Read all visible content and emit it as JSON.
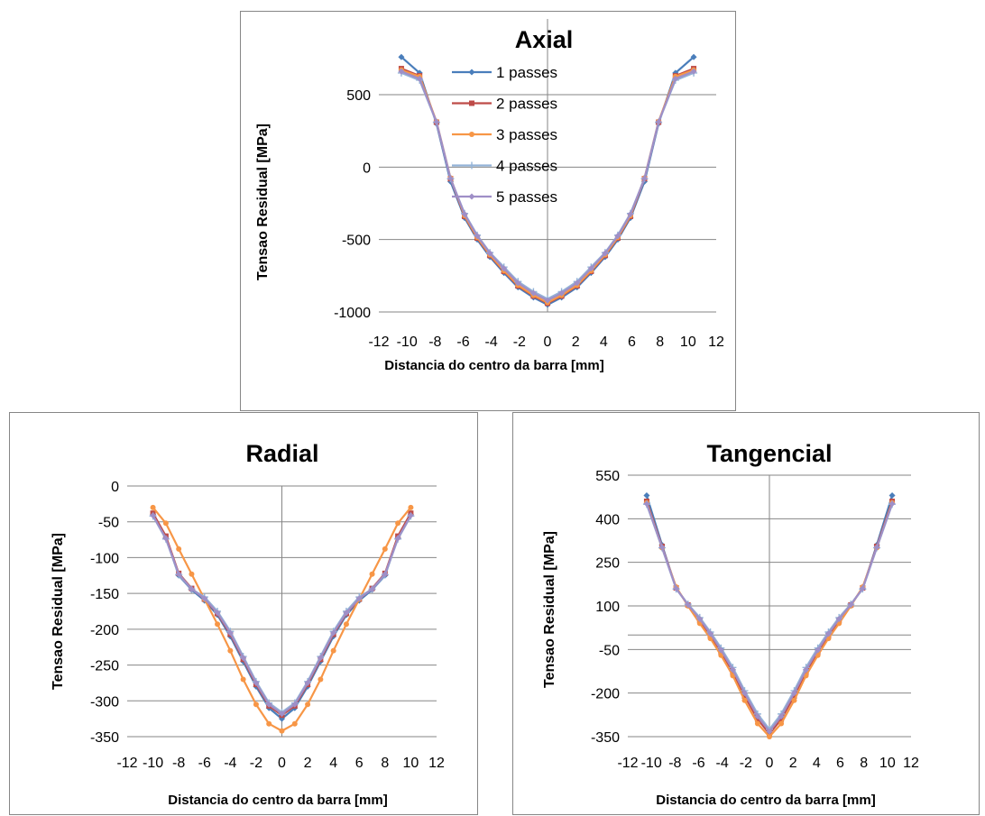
{
  "chart_data": [
    {
      "type": "line",
      "title": "Axial",
      "xlabel": "Distancia do centro da barra [mm]",
      "ylabel": "Tensao Residual [MPa]",
      "xlim": [
        -12,
        12
      ],
      "ylim": [
        -1000,
        700
      ],
      "xticks": [
        "-12",
        "-10",
        "-8",
        "-6",
        "-4",
        "-2",
        "0",
        "2",
        "4",
        "6",
        "8",
        "10",
        "12"
      ],
      "yticks": [
        "500",
        "0",
        "-500",
        "-1000"
      ],
      "legend_position": "top-center",
      "grid": true,
      "series": [
        {
          "name": "1 passes",
          "color": "#4a7ebb",
          "marker": "diamond",
          "x": [
            -10.4,
            -9.1,
            -7.9,
            -6.9,
            -5.9,
            -5.0,
            -4.1,
            -3.1,
            -2.1,
            -1.0,
            0,
            1.0,
            2.1,
            3.1,
            4.1,
            5.0,
            5.9,
            6.9,
            7.9,
            9.1,
            10.4
          ],
          "y": [
            760,
            650,
            300,
            -100,
            -350,
            -500,
            -620,
            -730,
            -830,
            -900,
            -950,
            -900,
            -830,
            -730,
            -620,
            -500,
            -350,
            -100,
            300,
            650,
            760
          ]
        },
        {
          "name": "2 passes",
          "color": "#be4b48",
          "marker": "square",
          "x": [
            -10.4,
            -9.1,
            -7.9,
            -6.9,
            -5.9,
            -5.0,
            -4.1,
            -3.1,
            -2.1,
            -1.0,
            0,
            1.0,
            2.1,
            3.1,
            4.1,
            5.0,
            5.9,
            6.9,
            7.9,
            9.1,
            10.4
          ],
          "y": [
            680,
            630,
            310,
            -80,
            -340,
            -490,
            -610,
            -720,
            -820,
            -890,
            -940,
            -890,
            -820,
            -720,
            -610,
            -490,
            -340,
            -80,
            310,
            630,
            680
          ]
        },
        {
          "name": "3 passes",
          "color": "#f79646",
          "marker": "circle",
          "x": [
            -10.4,
            -9.1,
            -7.9,
            -6.9,
            -5.9,
            -5.0,
            -4.1,
            -3.1,
            -2.1,
            -1.0,
            0,
            1.0,
            2.1,
            3.1,
            4.1,
            5.0,
            5.9,
            6.9,
            7.9,
            9.1,
            10.4
          ],
          "y": [
            670,
            625,
            315,
            -75,
            -335,
            -485,
            -605,
            -715,
            -815,
            -885,
            -935,
            -885,
            -815,
            -715,
            -605,
            -485,
            -335,
            -75,
            315,
            625,
            670
          ]
        },
        {
          "name": "4 passes",
          "color": "#93b3d7",
          "marker": "plus",
          "x": [
            -10.4,
            -9.1,
            -7.9,
            -6.9,
            -5.9,
            -5.0,
            -4.1,
            -3.1,
            -2.1,
            -1.0,
            0,
            1.0,
            2.1,
            3.1,
            4.1,
            5.0,
            5.9,
            6.9,
            7.9,
            9.1,
            10.4
          ],
          "y": [
            650,
            600,
            310,
            -80,
            -320,
            -470,
            -590,
            -690,
            -790,
            -860,
            -910,
            -860,
            -790,
            -690,
            -590,
            -470,
            -320,
            -80,
            310,
            600,
            650
          ]
        },
        {
          "name": "5 passes",
          "color": "#9f8fc7",
          "marker": "diamond",
          "x": [
            -10.4,
            -9.1,
            -7.9,
            -6.9,
            -5.9,
            -5.0,
            -4.1,
            -3.1,
            -2.1,
            -1.0,
            0,
            1.0,
            2.1,
            3.1,
            4.1,
            5.0,
            5.9,
            6.9,
            7.9,
            9.1,
            10.4
          ],
          "y": [
            660,
            610,
            312,
            -78,
            -325,
            -475,
            -595,
            -700,
            -800,
            -870,
            -920,
            -870,
            -800,
            -700,
            -595,
            -475,
            -325,
            -78,
            312,
            610,
            660
          ]
        }
      ]
    },
    {
      "type": "line",
      "title": "Radial",
      "xlabel": "Distancia do centro da barra [mm]",
      "ylabel": "Tensao Residual [MPa]",
      "xlim": [
        -12,
        12
      ],
      "ylim": [
        -350,
        0
      ],
      "xticks": [
        "-12",
        "-10",
        "-8",
        "-6",
        "-4",
        "-2",
        "0",
        "2",
        "4",
        "6",
        "8",
        "10",
        "12"
      ],
      "yticks": [
        "0",
        "-50",
        "-100",
        "-150",
        "-200",
        "-250",
        "-300",
        "-350"
      ],
      "grid": true,
      "series": [
        {
          "name": "1 passes",
          "color": "#4a7ebb",
          "marker": "diamond",
          "x": [
            -10,
            -9,
            -8,
            -7,
            -6,
            -5,
            -4,
            -3,
            -2,
            -1,
            0,
            1,
            2,
            3,
            4,
            5,
            6,
            7,
            8,
            9,
            10
          ],
          "y": [
            -40,
            -72,
            -125,
            -145,
            -160,
            -180,
            -210,
            -245,
            -280,
            -310,
            -325,
            -310,
            -280,
            -245,
            -210,
            -180,
            -160,
            -145,
            -125,
            -72,
            -40
          ]
        },
        {
          "name": "2 passes",
          "color": "#be4b48",
          "marker": "square",
          "x": [
            -10,
            -9,
            -8,
            -7,
            -6,
            -5,
            -4,
            -3,
            -2,
            -1,
            0,
            1,
            2,
            3,
            4,
            5,
            6,
            7,
            8,
            9,
            10
          ],
          "y": [
            -38,
            -70,
            -122,
            -143,
            -158,
            -178,
            -207,
            -242,
            -277,
            -307,
            -320,
            -307,
            -277,
            -242,
            -207,
            -178,
            -158,
            -143,
            -122,
            -70,
            -38
          ]
        },
        {
          "name": "3 passes",
          "color": "#f79646",
          "marker": "circle",
          "x": [
            -10,
            -9,
            -8,
            -7,
            -6,
            -5,
            -4,
            -3,
            -2,
            -1,
            0,
            1,
            2,
            3,
            4,
            5,
            6,
            7,
            8,
            9,
            10
          ],
          "y": [
            -30,
            -52,
            -88,
            -123,
            -158,
            -193,
            -230,
            -270,
            -305,
            -332,
            -342,
            -332,
            -305,
            -270,
            -230,
            -193,
            -158,
            -123,
            -88,
            -52,
            -30
          ]
        },
        {
          "name": "4 passes",
          "color": "#93b3d7",
          "marker": "plus",
          "x": [
            -10,
            -9,
            -8,
            -7,
            -6,
            -5,
            -4,
            -3,
            -2,
            -1,
            0,
            1,
            2,
            3,
            4,
            5,
            6,
            7,
            8,
            9,
            10
          ],
          "y": [
            -42,
            -74,
            -124,
            -144,
            -155,
            -175,
            -203,
            -238,
            -273,
            -303,
            -316,
            -303,
            -273,
            -238,
            -203,
            -175,
            -155,
            -144,
            -124,
            -74,
            -42
          ]
        },
        {
          "name": "5 passes",
          "color": "#9f8fc7",
          "marker": "diamond",
          "x": [
            -10,
            -9,
            -8,
            -7,
            -6,
            -5,
            -4,
            -3,
            -2,
            -1,
            0,
            1,
            2,
            3,
            4,
            5,
            6,
            7,
            8,
            9,
            10
          ],
          "y": [
            -41,
            -73,
            -123,
            -144,
            -157,
            -177,
            -205,
            -240,
            -275,
            -305,
            -318,
            -305,
            -275,
            -240,
            -205,
            -177,
            -157,
            -144,
            -123,
            -73,
            -41
          ]
        }
      ]
    },
    {
      "type": "line",
      "title": "Tangencial",
      "xlabel": "Distancia do centro da barra [mm]",
      "ylabel": "Tensao Residual [MPa]",
      "xlim": [
        -12,
        12
      ],
      "ylim": [
        -350,
        550
      ],
      "xticks": [
        "-12",
        "-10",
        "-8",
        "-6",
        "-4",
        "-2",
        "0",
        "2",
        "4",
        "6",
        "8",
        "10",
        "12"
      ],
      "yticks": [
        "550",
        "400",
        "250",
        "100",
        "-50",
        "-200",
        "-350"
      ],
      "grid": true,
      "series": [
        {
          "name": "1 passes",
          "color": "#4a7ebb",
          "marker": "diamond",
          "x": [
            -10.4,
            -9.1,
            -7.9,
            -6.9,
            -5.9,
            -5.0,
            -4.1,
            -3.1,
            -2.1,
            -1.0,
            0,
            1.0,
            2.1,
            3.1,
            4.1,
            5.0,
            5.9,
            6.9,
            7.9,
            9.1,
            10.4
          ],
          "y": [
            480,
            310,
            160,
            105,
            55,
            5,
            -50,
            -120,
            -200,
            -280,
            -330,
            -280,
            -200,
            -120,
            -50,
            5,
            55,
            105,
            160,
            310,
            480
          ]
        },
        {
          "name": "2 passes",
          "color": "#be4b48",
          "marker": "square",
          "x": [
            -10.4,
            -9.1,
            -7.9,
            -6.9,
            -5.9,
            -5.0,
            -4.1,
            -3.1,
            -2.1,
            -1.0,
            0,
            1.0,
            2.1,
            3.1,
            4.1,
            5.0,
            5.9,
            6.9,
            7.9,
            9.1,
            10.4
          ],
          "y": [
            460,
            305,
            162,
            103,
            50,
            -2,
            -58,
            -128,
            -210,
            -290,
            -340,
            -290,
            -210,
            -128,
            -58,
            -2,
            50,
            103,
            162,
            305,
            460
          ]
        },
        {
          "name": "3 passes",
          "color": "#f79646",
          "marker": "circle",
          "x": [
            -10.4,
            -9.1,
            -7.9,
            -6.9,
            -5.9,
            -5.0,
            -4.1,
            -3.1,
            -2.1,
            -1.0,
            0,
            1.0,
            2.1,
            3.1,
            4.1,
            5.0,
            5.9,
            6.9,
            7.9,
            9.1,
            10.4
          ],
          "y": [
            455,
            300,
            165,
            100,
            40,
            -12,
            -70,
            -140,
            -225,
            -305,
            -350,
            -305,
            -225,
            -140,
            -70,
            -12,
            40,
            100,
            165,
            300,
            455
          ]
        },
        {
          "name": "4 passes",
          "color": "#93b3d7",
          "marker": "plus",
          "x": [
            -10.4,
            -9.1,
            -7.9,
            -6.9,
            -5.9,
            -5.0,
            -4.1,
            -3.1,
            -2.1,
            -1.0,
            0,
            1.0,
            2.1,
            3.1,
            4.1,
            5.0,
            5.9,
            6.9,
            7.9,
            9.1,
            10.4
          ],
          "y": [
            450,
            300,
            158,
            106,
            60,
            10,
            -45,
            -112,
            -192,
            -272,
            -325,
            -272,
            -192,
            -112,
            -45,
            10,
            60,
            106,
            158,
            300,
            450
          ]
        },
        {
          "name": "5 passes",
          "color": "#9f8fc7",
          "marker": "diamond",
          "x": [
            -10.4,
            -9.1,
            -7.9,
            -6.9,
            -5.9,
            -5.0,
            -4.1,
            -3.1,
            -2.1,
            -1.0,
            0,
            1.0,
            2.1,
            3.1,
            4.1,
            5.0,
            5.9,
            6.9,
            7.9,
            9.1,
            10.4
          ],
          "y": [
            452,
            302,
            160,
            104,
            55,
            4,
            -52,
            -120,
            -200,
            -280,
            -332,
            -280,
            -200,
            -120,
            -52,
            4,
            55,
            104,
            160,
            302,
            452
          ]
        }
      ]
    }
  ]
}
